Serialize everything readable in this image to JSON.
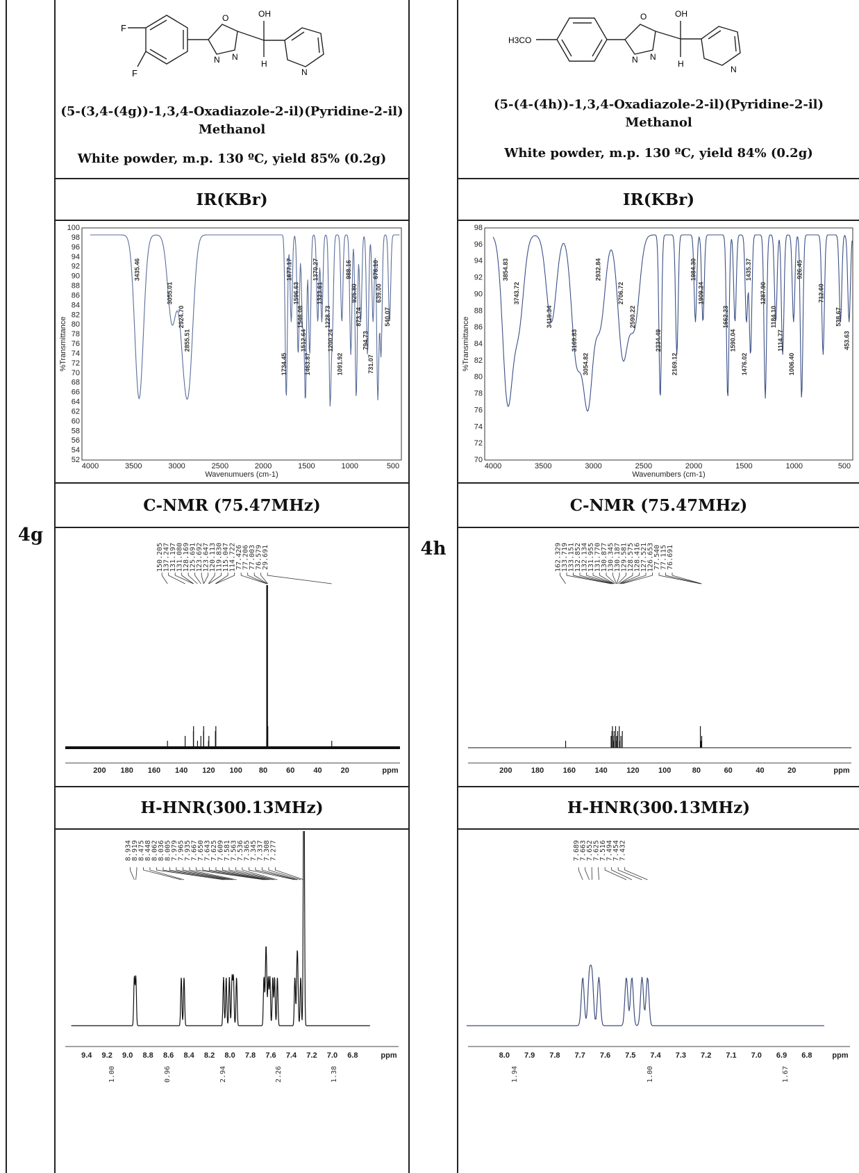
{
  "compounds": [
    {
      "id": "4g",
      "structure": {
        "substituent_f1": "F",
        "substituent_f2": "F",
        "hydroxyl": "OH",
        "hydrogen": "H",
        "ring_o": "O",
        "ring_n1": "N",
        "ring_n2": "N",
        "pyridine_n": "N"
      },
      "name_line1": "(5-(3,4-(4g))-1,3,4-Oxadiazole-2-il)(Pyridine-2-il)",
      "name_line2": "Methanol",
      "description": "White powder, m.p. 130 ºC, yield 85% (0.2g)",
      "ir_title": "IR(KBr)",
      "cnmr_title": "C-NMR (75.47MHz)",
      "hnmr_title": "H-HNR(300.13MHz)",
      "ir_spectrum": {
        "ylabel": "%Transmittance",
        "xlabel": "Wavenumuers (cm-1)",
        "x_ticks": [
          "4000",
          "3500",
          "3000",
          "2500",
          "2000",
          "1500",
          "1000",
          "500"
        ],
        "y_ticks": [
          "100",
          "98",
          "96",
          "94",
          "92",
          "90",
          "88",
          "86",
          "84",
          "82",
          "80",
          "78",
          "76",
          "74",
          "72",
          "70",
          "68",
          "66",
          "64",
          "62",
          "60",
          "58",
          "56",
          "54",
          "52"
        ],
        "peaks": [
          "3435.46",
          "3055.01",
          "2924.70",
          "2855.51",
          "1734.45",
          "1677.17",
          "1596.63",
          "1546.08",
          "1512.64",
          "1463.87",
          "1370.27",
          "1323.61",
          "1228.73",
          "1200.24",
          "1091.92",
          "988.16",
          "925.80",
          "873.74",
          "794.73",
          "731.07",
          "676.10",
          "639.00",
          "540.07"
        ]
      },
      "cnmr_spectrum": {
        "x_ticks": [
          "200",
          "180",
          "160",
          "140",
          "120",
          "100",
          "80",
          "60",
          "40",
          "20",
          "ppm"
        ],
        "peak_labels": [
          "150.205",
          "137.247",
          "131.197",
          "131.080",
          "128.169",
          "125.691",
          "123.692",
          "123.647",
          "120.113",
          "119.830",
          "115.047",
          "114.722",
          "77.426",
          "77.206",
          "77.003",
          "76.579",
          "29.691"
        ]
      },
      "hnmr_spectrum": {
        "x_ticks": [
          "9.4",
          "9.2",
          "9.0",
          "8.8",
          "8.6",
          "8.4",
          "8.2",
          "8.0",
          "7.8",
          "7.6",
          "7.4",
          "7.2",
          "7.0",
          "6.8",
          "ppm"
        ],
        "peak_labels": [
          "8.934",
          "8.919",
          "8.475",
          "8.448",
          "8.062",
          "8.036",
          "8.005",
          "7.979",
          "7.965",
          "7.935",
          "7.667",
          "7.650",
          "7.643",
          "7.625",
          "7.609",
          "7.581",
          "7.563",
          "7.536",
          "7.365",
          "7.345",
          "7.337",
          "7.308",
          "7.277"
        ],
        "integrals": [
          "1.00",
          "0.96",
          "2.94",
          "2.26",
          "1.38"
        ]
      }
    },
    {
      "id": "4h",
      "structure": {
        "substituent": "H3CO",
        "hydroxyl": "OH",
        "hydrogen": "H",
        "ring_o": "O",
        "ring_n1": "N",
        "ring_n2": "N",
        "pyridine_n": "N"
      },
      "name_line1": "(5-(4-(4h))-1,3,4-Oxadiazole-2-il)(Pyridine-2-il)",
      "name_line2": "Methanol",
      "description": "White powder, m.p. 130 ºC, yield 84% (0.2g)",
      "ir_title": "IR(KBr)",
      "cnmr_title": "C-NMR (75.47MHz)",
      "hnmr_title": "H-HNR(300.13MHz)",
      "ir_spectrum": {
        "ylabel": "%Transmittance",
        "xlabel": "Wavenumbers (cm-1)",
        "x_ticks": [
          "4000",
          "3500",
          "3000",
          "2500",
          "2000",
          "1500",
          "1000",
          "500"
        ],
        "y_ticks": [
          "98",
          "96",
          "94",
          "92",
          "90",
          "88",
          "86",
          "84",
          "82",
          "80",
          "78",
          "76",
          "74",
          "72",
          "70"
        ],
        "peaks": [
          "3854.83",
          "3743.72",
          "3419.34",
          "3169.83",
          "3054.82",
          "2932.84",
          "2706.72",
          "2590.22",
          "2334.49",
          "2169.12",
          "1984.30",
          "1909.24",
          "1662.23",
          "1590.04",
          "1476.02",
          "1435.37",
          "1287.90",
          "1184.10",
          "1114.77",
          "1006.40",
          "926.45",
          "712.60",
          "538.67",
          "453.63"
        ]
      },
      "cnmr_spectrum": {
        "x_ticks": [
          "200",
          "180",
          "160",
          "140",
          "120",
          "100",
          "80",
          "60",
          "40",
          "20",
          "ppm"
        ],
        "peak_labels": [
          "162.329",
          "133.719",
          "133.151",
          "132.852",
          "132.134",
          "131.955",
          "131.770",
          "130.877",
          "130.345",
          "130.187",
          "129.581",
          "128.575",
          "128.416",
          "127.521",
          "126.653",
          "77.540",
          "77.115",
          "76.691"
        ]
      },
      "hnmr_spectrum": {
        "x_ticks": [
          "8.0",
          "7.9",
          "7.8",
          "7.7",
          "7.6",
          "7.5",
          "7.4",
          "7.3",
          "7.2",
          "7.1",
          "7.0",
          "6.9",
          "6.8",
          "ppm"
        ],
        "peak_labels": [
          "7.689",
          "7.663",
          "7.652",
          "7.625",
          "7.516",
          "7.494",
          "7.454",
          "7.432"
        ],
        "integrals": [
          "1.94",
          "1.00",
          "1.67"
        ]
      }
    }
  ]
}
